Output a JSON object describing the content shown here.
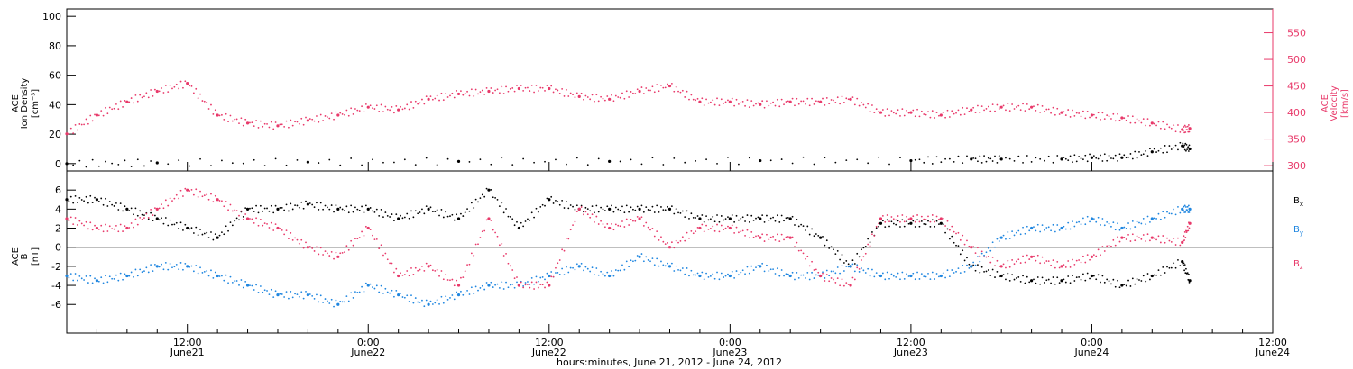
{
  "colors": {
    "ink": "#000000",
    "pink": "#e8396a",
    "blue": "#1f86e0"
  },
  "xlabel": "hours:minutes, June 21, 2012 - June 24, 2012",
  "time_ticks": [
    {
      "t": 12,
      "time": "12:00",
      "date": "June21"
    },
    {
      "t": 24,
      "time": "0:00",
      "date": "June22"
    },
    {
      "t": 36,
      "time": "12:00",
      "date": "June22"
    },
    {
      "t": 48,
      "time": "0:00",
      "date": "June23"
    },
    {
      "t": 60,
      "time": "12:00",
      "date": "June23"
    },
    {
      "t": 72,
      "time": "0:00",
      "date": "June24"
    },
    {
      "t": 84,
      "time": "12:00",
      "date": "June24"
    }
  ],
  "chart_data": [
    {
      "type": "scatter",
      "xlim": [
        4,
        84
      ],
      "ylim": [
        -5,
        105
      ],
      "y2lim": [
        290,
        595
      ],
      "ylabel": [
        "ACE",
        "Ion Density",
        "[cm⁻³]"
      ],
      "y2label": [
        "ACE",
        "Velocity",
        "[km/s]"
      ],
      "yticks": [
        0,
        20,
        40,
        60,
        80,
        100
      ],
      "y2ticks": [
        300,
        350,
        400,
        450,
        500,
        550
      ],
      "series": [
        {
          "axis": "right",
          "color": "#e8396a",
          "x": [
            4,
            6,
            8,
            10,
            12,
            14,
            16,
            18,
            20,
            22,
            24,
            26,
            28,
            30,
            32,
            34,
            36,
            38,
            40,
            42,
            44,
            46,
            48,
            50,
            52,
            54,
            56,
            58,
            60,
            62,
            64,
            66,
            68,
            70,
            72,
            74,
            76,
            78,
            78.5
          ],
          "y": [
            360,
            395,
            420,
            440,
            455,
            395,
            380,
            375,
            385,
            395,
            410,
            405,
            425,
            435,
            440,
            445,
            445,
            430,
            425,
            440,
            450,
            420,
            420,
            415,
            420,
            420,
            425,
            400,
            400,
            395,
            405,
            410,
            410,
            400,
            395,
            390,
            380,
            368,
            370
          ]
        },
        {
          "axis": "left",
          "color": "#000000",
          "x": [
            4,
            10,
            20,
            30,
            40,
            50,
            60,
            64,
            66,
            70,
            72,
            74,
            76,
            78,
            78.5
          ],
          "y": [
            0,
            0.5,
            1,
            1.5,
            1.5,
            2,
            2,
            3,
            3,
            3,
            4,
            4,
            8,
            12,
            10
          ]
        }
      ]
    },
    {
      "type": "scatter",
      "xlim": [
        4,
        84
      ],
      "ylim": [
        -9,
        8
      ],
      "ylabel": [
        "ACE",
        "B",
        "[nT]"
      ],
      "yticks": [
        -6,
        -4,
        -2,
        0,
        2,
        4,
        6
      ],
      "legend": [
        "Bx",
        "By",
        "Bz"
      ],
      "series": [
        {
          "name": "Bx",
          "color": "#000000",
          "x": [
            4,
            6,
            8,
            10,
            12,
            14,
            16,
            18,
            20,
            22,
            24,
            26,
            28,
            30,
            32,
            34,
            36,
            38,
            40,
            42,
            44,
            46,
            48,
            50,
            52,
            54,
            56,
            58,
            60,
            62,
            64,
            66,
            68,
            70,
            72,
            74,
            76,
            78,
            78.5
          ],
          "y": [
            5,
            5,
            4,
            3,
            2,
            1,
            4,
            4,
            4.5,
            4,
            4,
            3,
            4,
            3,
            6,
            2,
            5,
            4,
            4,
            4,
            4,
            3,
            3,
            3,
            3,
            1,
            -2,
            2.5,
            2.5,
            2.5,
            -2,
            -3,
            -3.5,
            -3.5,
            -3,
            -4,
            -3,
            -1.5,
            -3.5
          ]
        },
        {
          "name": "By",
          "color": "#1f86e0",
          "x": [
            4,
            6,
            8,
            10,
            12,
            14,
            16,
            18,
            20,
            22,
            24,
            26,
            28,
            30,
            32,
            34,
            36,
            38,
            40,
            42,
            44,
            46,
            48,
            50,
            52,
            54,
            56,
            58,
            60,
            62,
            64,
            66,
            68,
            70,
            72,
            74,
            76,
            78,
            78.5
          ],
          "y": [
            -3,
            -3.5,
            -3,
            -2,
            -2,
            -3,
            -4,
            -5,
            -5,
            -6,
            -4,
            -5,
            -6,
            -5,
            -4,
            -4,
            -3,
            -2,
            -3,
            -1,
            -2,
            -3,
            -3,
            -2,
            -3,
            -3,
            -2,
            -3,
            -3,
            -3,
            -2,
            1,
            2,
            2,
            3,
            2,
            3,
            4,
            4
          ]
        },
        {
          "name": "Bz",
          "color": "#e8396a",
          "x": [
            4,
            6,
            8,
            10,
            12,
            14,
            16,
            18,
            20,
            22,
            24,
            26,
            28,
            30,
            32,
            34,
            36,
            38,
            40,
            42,
            44,
            46,
            48,
            50,
            52,
            54,
            56,
            58,
            60,
            62,
            64,
            66,
            68,
            70,
            72,
            74,
            76,
            78,
            78.5
          ],
          "y": [
            3,
            2,
            2,
            4,
            6,
            5,
            3,
            2,
            0,
            -1,
            2,
            -3,
            -2,
            -4,
            3,
            -4,
            -4,
            4,
            2,
            3,
            0,
            2,
            2,
            1,
            1,
            -3,
            -4,
            3,
            3,
            3,
            0,
            -2,
            -1,
            -2,
            -1,
            1,
            1,
            0.5,
            2.5
          ]
        }
      ]
    }
  ]
}
